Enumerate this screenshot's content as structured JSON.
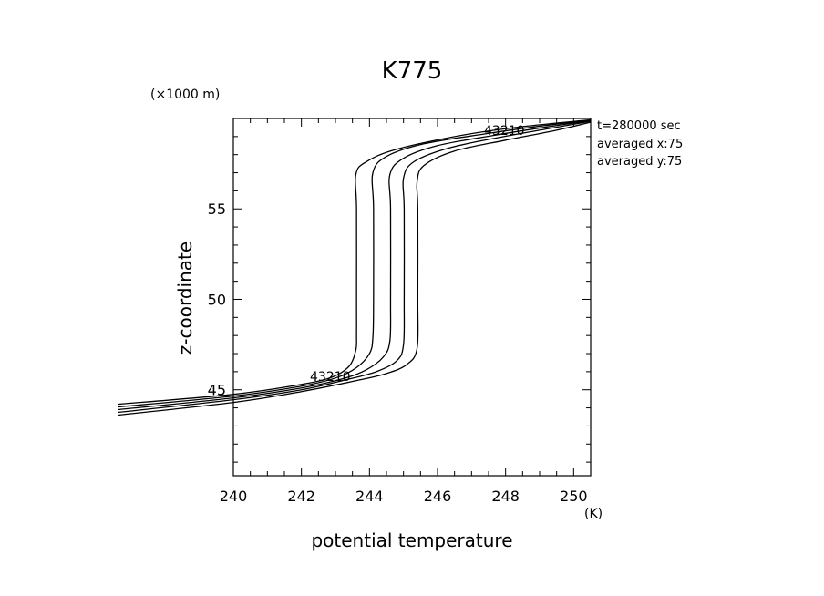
{
  "chart_data": {
    "type": "line",
    "title": "K775",
    "xlabel": "potential temperature",
    "ylabel": "z-coordinate",
    "x_unit": "(K)",
    "y_unit": "(×1000 m)",
    "xlim": [
      240,
      250.5
    ],
    "ylim": [
      40.25,
      60
    ],
    "x_ticks": [
      "240",
      "242",
      "244",
      "246",
      "248",
      "250"
    ],
    "y_ticks": [
      "45",
      "50",
      "55"
    ],
    "annotations": [
      "t=280000 sec",
      "averaged  x:75",
      "averaged  y:75"
    ],
    "upper_labels": "43210",
    "lower_labels": "43210",
    "series": [
      {
        "name": "0",
        "points": [
          [
            236.6,
            43.6
          ],
          [
            240,
            44.3
          ],
          [
            242,
            44.9
          ],
          [
            243.6,
            45.5
          ],
          [
            244.5,
            45.9
          ],
          [
            245.1,
            46.4
          ],
          [
            245.4,
            47.3
          ],
          [
            245.42,
            50
          ],
          [
            245.42,
            55
          ],
          [
            245.4,
            56.5
          ],
          [
            245.6,
            57.4
          ],
          [
            246.5,
            58.2
          ],
          [
            248.0,
            58.8
          ],
          [
            249.5,
            59.35
          ],
          [
            250.5,
            59.8
          ]
        ]
      },
      {
        "name": "1",
        "points": [
          [
            236.6,
            43.75
          ],
          [
            240,
            44.45
          ],
          [
            242,
            45.0
          ],
          [
            243.3,
            45.55
          ],
          [
            244.2,
            46.0
          ],
          [
            244.8,
            46.6
          ],
          [
            245.0,
            47.5
          ],
          [
            245.02,
            50
          ],
          [
            245.02,
            55
          ],
          [
            245.0,
            56.7
          ],
          [
            245.3,
            57.6
          ],
          [
            246.3,
            58.35
          ],
          [
            247.8,
            58.95
          ],
          [
            249.3,
            59.45
          ],
          [
            250.5,
            59.85
          ]
        ]
      },
      {
        "name": "2",
        "points": [
          [
            236.6,
            43.9
          ],
          [
            240,
            44.55
          ],
          [
            242,
            45.1
          ],
          [
            243.2,
            45.6
          ],
          [
            243.9,
            46.1
          ],
          [
            244.4,
            46.8
          ],
          [
            244.6,
            47.7
          ],
          [
            244.62,
            50
          ],
          [
            244.62,
            55
          ],
          [
            244.6,
            56.9
          ],
          [
            245.0,
            57.8
          ],
          [
            246.0,
            58.5
          ],
          [
            247.6,
            59.05
          ],
          [
            249.1,
            59.5
          ],
          [
            250.5,
            59.88
          ]
        ]
      },
      {
        "name": "3",
        "points": [
          [
            236.6,
            44.05
          ],
          [
            240,
            44.65
          ],
          [
            242,
            45.2
          ],
          [
            243.0,
            45.65
          ],
          [
            243.6,
            46.2
          ],
          [
            244.0,
            47.0
          ],
          [
            244.1,
            47.9
          ],
          [
            244.12,
            50
          ],
          [
            244.12,
            55
          ],
          [
            244.1,
            57.0
          ],
          [
            244.5,
            57.9
          ],
          [
            245.6,
            58.6
          ],
          [
            247.4,
            59.15
          ],
          [
            248.9,
            59.55
          ],
          [
            250.5,
            59.9
          ]
        ]
      },
      {
        "name": "4",
        "points": [
          [
            236.6,
            44.2
          ],
          [
            240,
            44.75
          ],
          [
            242,
            45.3
          ],
          [
            242.9,
            45.7
          ],
          [
            243.4,
            46.3
          ],
          [
            243.6,
            47.2
          ],
          [
            243.62,
            48.1
          ],
          [
            243.62,
            50
          ],
          [
            243.62,
            55
          ],
          [
            243.6,
            56.9
          ],
          [
            243.9,
            57.6
          ],
          [
            244.8,
            58.3
          ],
          [
            246.8,
            59.1
          ],
          [
            248.5,
            59.55
          ],
          [
            250.5,
            59.93
          ]
        ]
      }
    ]
  }
}
